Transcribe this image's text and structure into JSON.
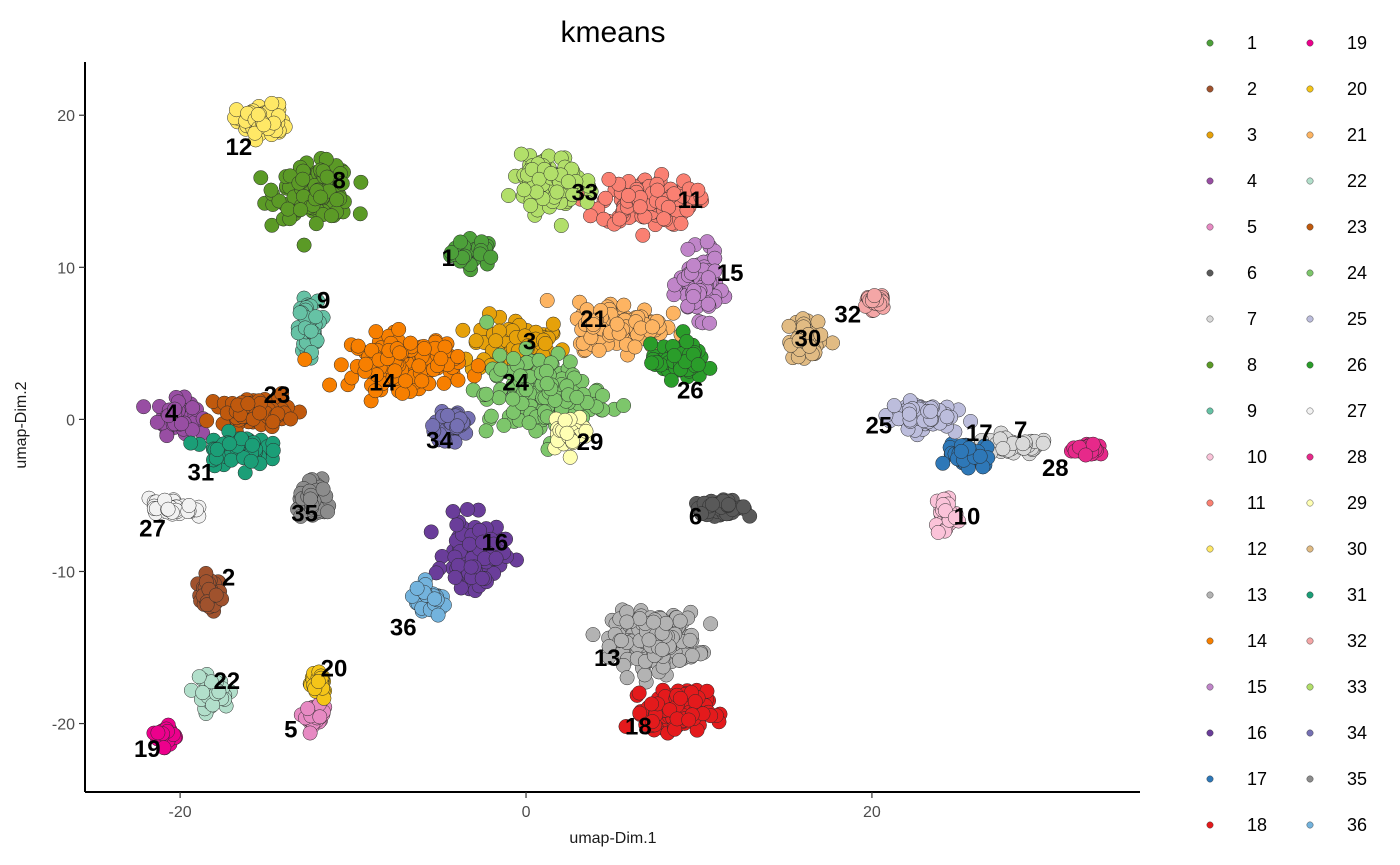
{
  "chart_data": {
    "type": "scatter",
    "title": "kmeans",
    "xlabel": "umap-Dim.1",
    "ylabel": "umap-Dim.2",
    "xlim": [
      -25.5,
      35.5
    ],
    "ylim": [
      -24.5,
      23.5
    ],
    "xticks": [
      -20,
      0,
      20
    ],
    "yticks": [
      -20,
      -10,
      0,
      10,
      20
    ],
    "grid": false,
    "legend_placement": "right",
    "legend_columns": 2,
    "clusters": [
      {
        "name": "1",
        "color": "#4da03a",
        "label_xy": [
          -4.5,
          10.5
        ],
        "center": [
          -3.0,
          11.0
        ],
        "spread": [
          1.2,
          0.8
        ],
        "n": 40
      },
      {
        "name": "2",
        "color": "#a0522d",
        "label_xy": [
          -17.2,
          -10.5
        ],
        "center": [
          -18.3,
          -11.5
        ],
        "spread": [
          0.6,
          1.0
        ],
        "n": 45
      },
      {
        "name": "3",
        "color": "#e6a10a",
        "label_xy": [
          0.2,
          5.0
        ],
        "center": [
          -0.5,
          4.8
        ],
        "spread": [
          2.5,
          1.8
        ],
        "n": 80
      },
      {
        "name": "4",
        "color": "#984ea3",
        "label_xy": [
          -20.5,
          0.3
        ],
        "center": [
          -20.2,
          0.2
        ],
        "spread": [
          1.0,
          1.0
        ],
        "n": 70
      },
      {
        "name": "5",
        "color": "#e78ac3",
        "label_xy": [
          -13.6,
          -20.5
        ],
        "center": [
          -12.2,
          -19.5
        ],
        "spread": [
          0.5,
          0.6
        ],
        "n": 30
      },
      {
        "name": "6",
        "color": "#595959",
        "label_xy": [
          9.8,
          -6.5
        ],
        "center": [
          11.2,
          -5.8
        ],
        "spread": [
          1.4,
          0.4
        ],
        "n": 60
      },
      {
        "name": "7",
        "color": "#d9d9d9",
        "label_xy": [
          28.6,
          -0.8
        ],
        "center": [
          28.0,
          -1.8
        ],
        "spread": [
          2.2,
          0.5
        ],
        "n": 80
      },
      {
        "name": "8",
        "color": "#5b9a26",
        "label_xy": [
          -10.8,
          15.6
        ],
        "center": [
          -12.2,
          15.0
        ],
        "spread": [
          2.0,
          1.6
        ],
        "n": 130
      },
      {
        "name": "9",
        "color": "#66c2a5",
        "label_xy": [
          -11.7,
          7.7
        ],
        "center": [
          -12.6,
          6.0
        ],
        "spread": [
          0.5,
          1.6
        ],
        "n": 70
      },
      {
        "name": "10",
        "color": "#fbc3d9",
        "label_xy": [
          25.5,
          -6.5
        ],
        "center": [
          24.3,
          -6.2
        ],
        "spread": [
          0.6,
          1.4
        ],
        "n": 45
      },
      {
        "name": "11",
        "color": "#fa8072",
        "label_xy": [
          9.5,
          14.3
        ],
        "center": [
          7.0,
          14.3
        ],
        "spread": [
          2.4,
          1.4
        ],
        "n": 150
      },
      {
        "name": "12",
        "color": "#ffe866",
        "label_xy": [
          -16.6,
          17.8
        ],
        "center": [
          -15.3,
          19.6
        ],
        "spread": [
          1.3,
          1.0
        ],
        "n": 65
      },
      {
        "name": "13",
        "color": "#b3b3b3",
        "label_xy": [
          4.7,
          -15.8
        ],
        "center": [
          7.5,
          -14.5
        ],
        "spread": [
          2.2,
          1.6
        ],
        "n": 200
      },
      {
        "name": "14",
        "color": "#f77f00",
        "label_xy": [
          -8.3,
          2.3
        ],
        "center": [
          -7.0,
          3.8
        ],
        "spread": [
          2.8,
          1.6
        ],
        "n": 140
      },
      {
        "name": "15",
        "color": "#c085c9",
        "label_xy": [
          11.8,
          9.5
        ],
        "center": [
          10.0,
          8.8
        ],
        "spread": [
          1.0,
          1.8
        ],
        "n": 110
      },
      {
        "name": "16",
        "color": "#6a3d9a",
        "label_xy": [
          -1.8,
          -8.2
        ],
        "center": [
          -3.0,
          -8.8
        ],
        "spread": [
          1.5,
          2.0
        ],
        "n": 110
      },
      {
        "name": "17",
        "color": "#2e78b8",
        "label_xy": [
          26.2,
          -1.0
        ],
        "center": [
          25.5,
          -2.3
        ],
        "spread": [
          1.0,
          0.7
        ],
        "n": 60
      },
      {
        "name": "18",
        "color": "#e41a1c",
        "label_xy": [
          6.5,
          -20.3
        ],
        "center": [
          8.7,
          -19.2
        ],
        "spread": [
          1.6,
          1.2
        ],
        "n": 170
      },
      {
        "name": "19",
        "color": "#ec008c",
        "label_xy": [
          -21.9,
          -21.8
        ],
        "center": [
          -20.8,
          -20.8
        ],
        "spread": [
          0.5,
          0.6
        ],
        "n": 35
      },
      {
        "name": "20",
        "color": "#f5c518",
        "label_xy": [
          -11.1,
          -16.5
        ],
        "center": [
          -12.0,
          -17.3
        ],
        "spread": [
          0.5,
          1.0
        ],
        "n": 30
      },
      {
        "name": "21",
        "color": "#fdb462",
        "label_xy": [
          3.9,
          6.5
        ],
        "center": [
          5.5,
          6.2
        ],
        "spread": [
          2.3,
          1.4
        ],
        "n": 150
      },
      {
        "name": "22",
        "color": "#b2dfcb",
        "label_xy": [
          -17.3,
          -17.3
        ],
        "center": [
          -18.2,
          -18.0
        ],
        "spread": [
          0.9,
          0.9
        ],
        "n": 40
      },
      {
        "name": "23",
        "color": "#c0590d",
        "label_xy": [
          -14.4,
          1.5
        ],
        "center": [
          -15.7,
          0.5
        ],
        "spread": [
          1.8,
          0.8
        ],
        "n": 110
      },
      {
        "name": "24",
        "color": "#7dc66b",
        "label_xy": [
          -0.6,
          2.3
        ],
        "center": [
          1.0,
          1.5
        ],
        "spread": [
          3.0,
          2.5
        ],
        "n": 150
      },
      {
        "name": "25",
        "color": "#bcbddc",
        "label_xy": [
          20.4,
          -0.5
        ],
        "center": [
          22.8,
          0.3
        ],
        "spread": [
          1.6,
          0.8
        ],
        "n": 100
      },
      {
        "name": "26",
        "color": "#2a9d2a",
        "label_xy": [
          9.5,
          1.8
        ],
        "center": [
          8.8,
          3.8
        ],
        "spread": [
          1.4,
          1.0
        ],
        "n": 80
      },
      {
        "name": "27",
        "color": "#f2f2f2",
        "label_xy": [
          -21.6,
          -7.3
        ],
        "center": [
          -20.5,
          -5.8
        ],
        "spread": [
          1.2,
          0.6
        ],
        "n": 45
      },
      {
        "name": "28",
        "color": "#e7298a",
        "label_xy": [
          30.6,
          -3.3
        ],
        "center": [
          32.5,
          -2.0
        ],
        "spread": [
          0.8,
          0.3
        ],
        "n": 30
      },
      {
        "name": "29",
        "color": "#ffffb3",
        "label_xy": [
          3.7,
          -1.6
        ],
        "center": [
          2.5,
          -0.8
        ],
        "spread": [
          1.0,
          1.0
        ],
        "n": 40
      },
      {
        "name": "30",
        "color": "#e1bb83",
        "label_xy": [
          16.3,
          5.2
        ],
        "center": [
          16.3,
          5.2
        ],
        "spread": [
          1.0,
          1.2
        ],
        "n": 50
      },
      {
        "name": "31",
        "color": "#1b9e77",
        "label_xy": [
          -18.8,
          -3.6
        ],
        "center": [
          -16.8,
          -2.0
        ],
        "spread": [
          1.6,
          0.9
        ],
        "n": 80
      },
      {
        "name": "32",
        "color": "#f4a6a6",
        "label_xy": [
          18.6,
          6.8
        ],
        "center": [
          20.1,
          7.8
        ],
        "spread": [
          0.6,
          0.6
        ],
        "n": 25
      },
      {
        "name": "33",
        "color": "#b2df6a",
        "label_xy": [
          3.4,
          14.8
        ],
        "center": [
          1.5,
          15.5
        ],
        "spread": [
          1.6,
          1.6
        ],
        "n": 130
      },
      {
        "name": "34",
        "color": "#7570b3",
        "label_xy": [
          -5.0,
          -1.5
        ],
        "center": [
          -4.3,
          -0.3
        ],
        "spread": [
          1.0,
          0.8
        ],
        "n": 45
      },
      {
        "name": "35",
        "color": "#8c8c8c",
        "label_xy": [
          -12.8,
          -6.3
        ],
        "center": [
          -12.2,
          -5.4
        ],
        "spread": [
          0.9,
          1.0
        ],
        "n": 60
      },
      {
        "name": "36",
        "color": "#73b3dd",
        "label_xy": [
          -7.1,
          -13.8
        ],
        "center": [
          -5.6,
          -12.0
        ],
        "spread": [
          1.0,
          0.8
        ],
        "n": 40
      }
    ]
  }
}
